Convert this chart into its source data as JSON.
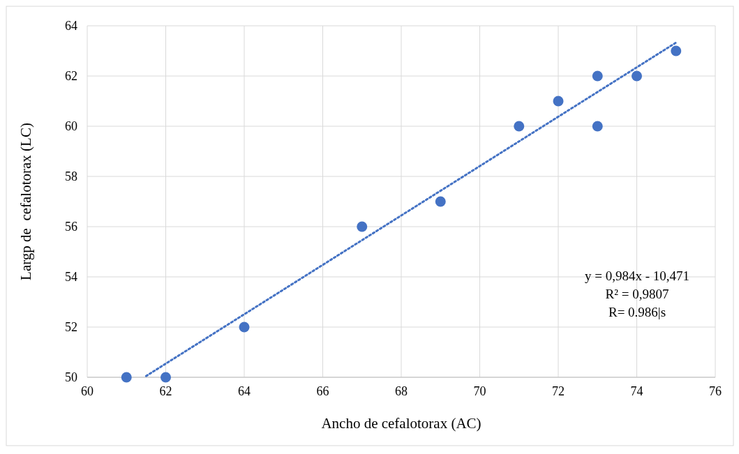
{
  "chart_data": {
    "type": "scatter",
    "xlabel": "Ancho de cefalotorax (AC)",
    "ylabel": "Largp de  cefalotorax (LC)",
    "xlim": [
      60,
      76
    ],
    "xticks": [
      60,
      62,
      64,
      66,
      68,
      70,
      72,
      74,
      76
    ],
    "ylim": [
      50,
      64
    ],
    "yticks": [
      50,
      52,
      54,
      56,
      58,
      60,
      62,
      64
    ],
    "grid": true,
    "series": [
      {
        "color": "#4472c4",
        "marker": "circle",
        "x": [
          61,
          62,
          64,
          67,
          69,
          71,
          72,
          73,
          73,
          74,
          75
        ],
        "values": [
          50,
          50,
          52,
          56,
          57,
          60,
          61,
          62,
          60,
          62,
          63
        ]
      },
      {
        "type": "line",
        "color": "#4472c4",
        "line_style": "dotted",
        "x": [
          61.5,
          75
        ],
        "values": [
          50.05,
          63.33
        ]
      }
    ],
    "annotations": [
      "y = 0,984x - 10,471",
      "R² = 0,9807",
      "R= 0.986|s"
    ]
  }
}
